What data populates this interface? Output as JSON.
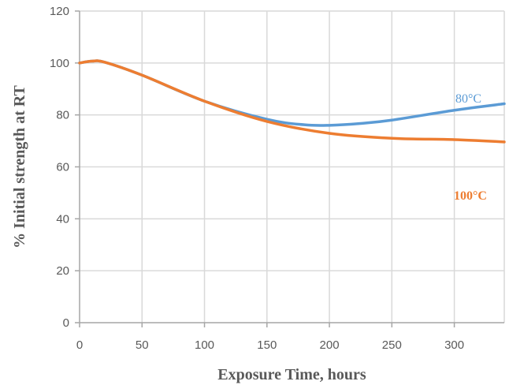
{
  "chart_data": {
    "type": "line",
    "title": "",
    "xlabel": "Exposure Time, hours",
    "ylabel": "% Initial strength at RT",
    "xlim": [
      0,
      340
    ],
    "ylim": [
      0,
      120
    ],
    "x_ticks": [
      0,
      50,
      100,
      150,
      200,
      250,
      300
    ],
    "y_ticks": [
      0,
      20,
      40,
      60,
      80,
      100,
      120
    ],
    "grid": true,
    "legend": "none",
    "series": [
      {
        "name": "80°C",
        "color": "#5B9BD5",
        "label_bold": false,
        "x": [
          0,
          10,
          20,
          50,
          100,
          150,
          180,
          200,
          225,
          250,
          300,
          340
        ],
        "y": [
          100,
          100.7,
          100.3,
          95.3,
          85.3,
          78.3,
          76.2,
          76.0,
          76.7,
          78.0,
          81.8,
          84.3
        ]
      },
      {
        "name": "100°C",
        "color": "#ED7D31",
        "label_bold": true,
        "x": [
          0,
          10,
          20,
          50,
          100,
          150,
          200,
          250,
          300,
          340
        ],
        "y": [
          100,
          100.7,
          100.3,
          95.3,
          85.3,
          77.5,
          72.9,
          71.0,
          70.5,
          69.6
        ]
      }
    ]
  }
}
